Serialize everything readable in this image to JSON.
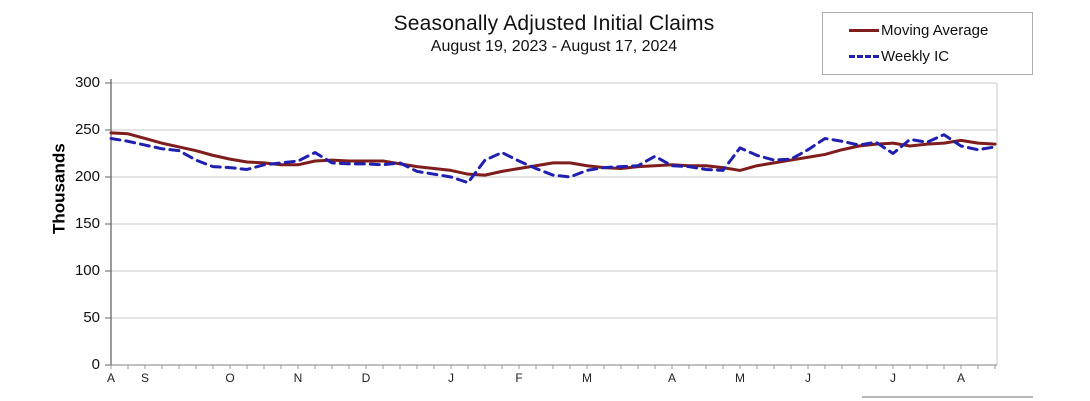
{
  "header": {
    "title": "Seasonally Adjusted Initial Claims",
    "subtitle": "August 19, 2023 - August 17, 2024"
  },
  "legend": {
    "items": [
      {
        "label": "Moving Average",
        "color": "#7f1c1c",
        "style": "solid"
      },
      {
        "label": "Weekly IC",
        "color": "#2020b0",
        "style": "dashed"
      }
    ]
  },
  "y_axis": {
    "title": "Thousands",
    "ticks": [
      0,
      50,
      100,
      150,
      200,
      250,
      300
    ]
  },
  "x_axis": {
    "month_labels": [
      {
        "label": "A",
        "week": 0
      },
      {
        "label": "S",
        "week": 2
      },
      {
        "label": "O",
        "week": 7
      },
      {
        "label": "N",
        "week": 11
      },
      {
        "label": "D",
        "week": 15
      },
      {
        "label": "J",
        "week": 20
      },
      {
        "label": "F",
        "week": 24
      },
      {
        "label": "M",
        "week": 28
      },
      {
        "label": "A",
        "week": 33
      },
      {
        "label": "M",
        "week": 37
      },
      {
        "label": "J",
        "week": 41
      },
      {
        "label": "J",
        "week": 46
      },
      {
        "label": "A",
        "week": 50
      }
    ]
  },
  "chart_data": {
    "type": "line",
    "title": "Seasonally Adjusted Initial Claims",
    "subtitle": "August 19, 2023 - August 17, 2024",
    "xlabel": "",
    "ylabel": "Thousands",
    "ylim": [
      0,
      300
    ],
    "grid": "horizontal",
    "legend_position": "top-right",
    "x_unit": "week ending",
    "x_start": "August 19, 2023",
    "x_end": "August 17, 2024",
    "n_points": 53,
    "series": [
      {
        "name": "Moving Average",
        "color": "#7f1c1c",
        "line_style": "solid",
        "values": [
          247,
          246,
          241,
          236,
          232,
          228,
          223,
          219,
          216,
          215,
          213,
          213,
          217,
          218,
          217,
          217,
          217,
          214,
          211,
          209,
          207,
          203,
          202,
          206,
          209,
          212,
          215,
          215,
          212,
          210,
          209,
          211,
          212,
          213,
          212,
          212,
          210,
          207,
          212,
          215,
          218,
          221,
          224,
          229,
          233,
          235,
          236,
          233,
          235,
          236,
          239,
          236,
          235
        ]
      },
      {
        "name": "Weekly IC",
        "color": "#2020b0",
        "line_style": "dashed",
        "values": [
          241,
          238,
          234,
          230,
          228,
          218,
          211,
          210,
          208,
          213,
          215,
          217,
          226,
          215,
          214,
          214,
          213,
          215,
          206,
          203,
          200,
          194,
          218,
          226,
          217,
          209,
          202,
          200,
          207,
          210,
          211,
          212,
          222,
          212,
          211,
          208,
          207,
          231,
          223,
          218,
          219,
          229,
          241,
          238,
          234,
          237,
          225,
          240,
          237,
          245,
          233,
          229,
          232
        ]
      }
    ]
  }
}
